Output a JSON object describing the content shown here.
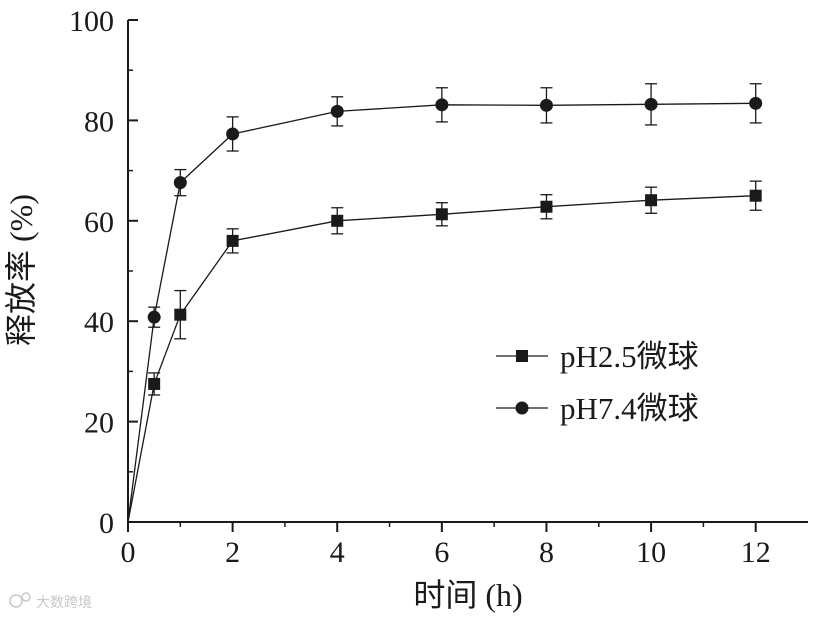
{
  "chart_data": {
    "type": "line",
    "title": "",
    "xlabel": "时间 (h)",
    "ylabel": "释放率 (%)",
    "xlim": [
      0,
      13
    ],
    "ylim": [
      0,
      100
    ],
    "xticks": [
      0,
      2,
      4,
      6,
      8,
      10,
      12
    ],
    "yticks": [
      0,
      20,
      40,
      60,
      80,
      100
    ],
    "grid": false,
    "legend_position": "center-right",
    "series": [
      {
        "name": "pH2.5微球",
        "marker": "square",
        "x": [
          0,
          0.5,
          1,
          2,
          4,
          6,
          8,
          10,
          12
        ],
        "y": [
          0,
          27.5,
          41.3,
          56.0,
          60.0,
          61.3,
          62.8,
          64.1,
          65.0
        ],
        "err": [
          0,
          2.2,
          4.8,
          2.4,
          2.6,
          2.3,
          2.4,
          2.6,
          2.9
        ]
      },
      {
        "name": "pH7.4微球",
        "marker": "circle",
        "x": [
          0,
          0.5,
          1,
          2,
          4,
          6,
          8,
          10,
          12
        ],
        "y": [
          0,
          40.8,
          67.6,
          77.3,
          81.8,
          83.1,
          83.0,
          83.2,
          83.4
        ],
        "err": [
          0,
          2.0,
          2.6,
          3.4,
          2.9,
          3.4,
          3.5,
          4.1,
          3.9
        ]
      }
    ]
  },
  "watermark": {
    "text": "大数跨境",
    "icon": "watermark-logo-icon"
  },
  "colors": {
    "ink": "#1a1a1a",
    "background": "#ffffff",
    "watermark": "#c8c8c8"
  }
}
